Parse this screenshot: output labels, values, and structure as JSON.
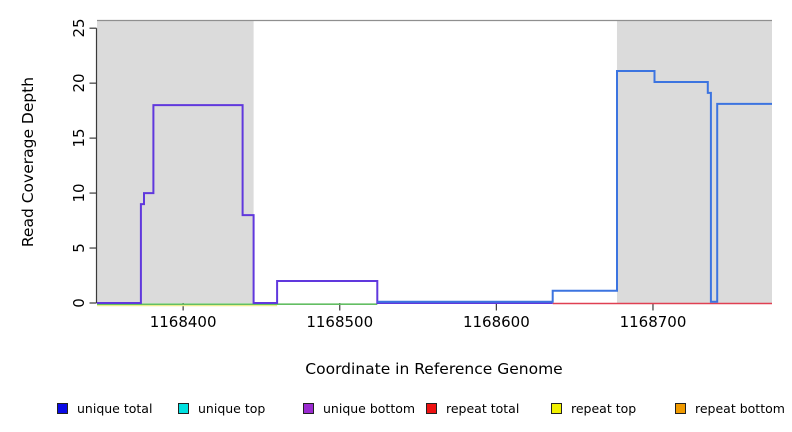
{
  "chart_data": {
    "type": "line",
    "subtype": "step-coverage-plot",
    "title": "",
    "xlabel": "Coordinate in Reference Genome",
    "ylabel": "Read Coverage Depth",
    "xlim": [
      1168345,
      1168776
    ],
    "ylim": [
      0,
      25.7
    ],
    "grid": false,
    "legend_position": "bottom",
    "x_ticks": [
      1168400,
      1168500,
      1168600,
      1168700
    ],
    "x_tick_labels": [
      "1168400",
      "1168500",
      "1168600",
      "1168700"
    ],
    "y_ticks": [
      0,
      5,
      10,
      15,
      20,
      25
    ],
    "y_tick_labels": [
      "0",
      "5",
      "10",
      "15",
      "20",
      "25"
    ],
    "highlight_color": "#DBDBDB",
    "highlight_regions": [
      {
        "name": "shaded-region-left",
        "x_start": 1168345,
        "x_end": 1168445
      },
      {
        "name": "shaded-region-right",
        "x_start": 1168677,
        "x_end": 1168776
      }
    ],
    "series": [
      {
        "name": "repeat top",
        "color": "#EDED8C",
        "stroke_width": 1.6,
        "dy": 2.5,
        "points": [
          [
            1168345,
            0
          ],
          [
            1168460,
            0
          ]
        ]
      },
      {
        "name": "unique top",
        "color": "#63BE63",
        "stroke_width": 1.6,
        "dy": 1.2,
        "points": [
          [
            1168345,
            0
          ],
          [
            1168524,
            0
          ]
        ]
      },
      {
        "name": "repeat total",
        "color": "#E04052",
        "stroke_width": 1.6,
        "dy": 0.5,
        "points": [
          [
            1168636,
            0
          ],
          [
            1168776,
            0
          ]
        ]
      },
      {
        "name": "unique bottom",
        "color": "#6038DD",
        "stroke_width": 2,
        "dy": 0,
        "points": [
          [
            1168345,
            0
          ],
          [
            1168373,
            0
          ],
          [
            1168373,
            9
          ],
          [
            1168375,
            9
          ],
          [
            1168375,
            10
          ],
          [
            1168381,
            10
          ],
          [
            1168381,
            18
          ],
          [
            1168438,
            18
          ],
          [
            1168438,
            8
          ],
          [
            1168445,
            8
          ],
          [
            1168445,
            0
          ],
          [
            1168460,
            0
          ],
          [
            1168460,
            2
          ],
          [
            1168524,
            2
          ],
          [
            1168524,
            0
          ],
          [
            1168636,
            0
          ]
        ]
      },
      {
        "name": "unique total",
        "color": "#3C74E0",
        "stroke_width": 2,
        "dy": -1.2,
        "points": [
          [
            1168524,
            0
          ],
          [
            1168636,
            0
          ],
          [
            1168636,
            1
          ],
          [
            1168677,
            1
          ],
          [
            1168677,
            21
          ],
          [
            1168701,
            21
          ],
          [
            1168701,
            20
          ],
          [
            1168735,
            20
          ],
          [
            1168735,
            19
          ],
          [
            1168737,
            19
          ],
          [
            1168737,
            0
          ],
          [
            1168741,
            0
          ],
          [
            1168741,
            18
          ],
          [
            1168776,
            18
          ]
        ]
      }
    ],
    "legend": [
      {
        "label": "unique total",
        "color": "#0A0AE6"
      },
      {
        "label": "unique top",
        "color": "#00E0E0"
      },
      {
        "label": "unique bottom",
        "color": "#9A2BD0"
      },
      {
        "label": "repeat total",
        "color": "#EE1111"
      },
      {
        "label": "repeat top",
        "color": "#F0F000"
      },
      {
        "label": "repeat bottom",
        "color": "#F09A00"
      }
    ],
    "axis_color": "#3a3a3a",
    "top_border_color": "#8f8f8f"
  }
}
